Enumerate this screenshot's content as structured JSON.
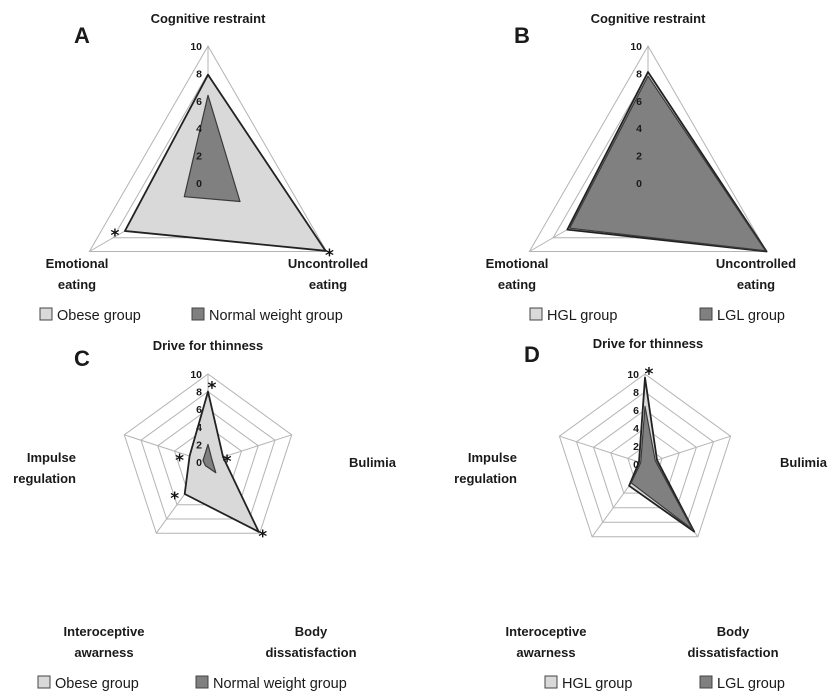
{
  "colors": {
    "light_series": "#d9d9d9",
    "dark_series": "#808080",
    "outline": "#222222",
    "grid": "#b4b4b4"
  },
  "chart_data": [
    {
      "panel": "A",
      "type": "radar",
      "axes": [
        "Cognitive restraint",
        "Uncontrolled eating",
        "Emotional eating"
      ],
      "axis_label_lines": [
        [
          "Cognitive restraint"
        ],
        [
          "Uncontrolled",
          "eating"
        ],
        [
          "Emotional",
          "eating"
        ]
      ],
      "ticks": [
        "0",
        "2",
        "4",
        "6",
        "8",
        "10"
      ],
      "range": [
        0,
        10
      ],
      "grid": true,
      "series": [
        {
          "name": "Obese group",
          "values": [
            7.9,
            9.9,
            7.0
          ],
          "style": "light"
        },
        {
          "name": "Normal weight group",
          "values": [
            6.4,
            2.7,
            2.0
          ],
          "style": "dark"
        }
      ],
      "significant": [
        false,
        true,
        true
      ],
      "legend": {
        "placement": "bottom"
      }
    },
    {
      "panel": "B",
      "type": "radar",
      "axes": [
        "Cognitive restraint",
        "Uncontrolled eating",
        "Emotional eating"
      ],
      "axis_label_lines": [
        [
          "Cognitive restraint"
        ],
        [
          "Uncontrolled",
          "eating"
        ],
        [
          "Emotional",
          "eating"
        ]
      ],
      "ticks": [
        "0",
        "2",
        "4",
        "6",
        "8",
        "10"
      ],
      "range": [
        0,
        10
      ],
      "grid": true,
      "series": [
        {
          "name": "HGL group",
          "values": [
            8.1,
            10.0,
            6.8
          ],
          "style": "light"
        },
        {
          "name": "LGL group",
          "values": [
            7.8,
            9.9,
            6.6
          ],
          "style": "dark"
        }
      ],
      "significant": [
        false,
        false,
        false
      ],
      "legend": {
        "placement": "bottom"
      }
    },
    {
      "panel": "C",
      "type": "radar",
      "axes": [
        "Drive for thinness",
        "Bulimia",
        "Body dissatisfaction",
        "Interoceptive awarness",
        "Impulse regulation"
      ],
      "axis_label_lines": [
        [
          "Drive for thinness"
        ],
        [
          "Bulimia"
        ],
        [
          "Body",
          "dissatisfaction"
        ],
        [
          "Interoceptive",
          "awarness"
        ],
        [
          "Impulse",
          "regulation"
        ]
      ],
      "ticks": [
        "0",
        "2",
        "4",
        "6",
        "8",
        "10"
      ],
      "range": [
        0,
        10
      ],
      "grid": true,
      "series": [
        {
          "name": "Obese group",
          "values": [
            8.0,
            1.8,
            9.8,
            4.5,
            2.2
          ],
          "style": "light"
        },
        {
          "name": "Normal weight group",
          "values": [
            2.0,
            0.5,
            1.5,
            0.5,
            0.6
          ],
          "style": "dark"
        }
      ],
      "significant": [
        true,
        true,
        true,
        true,
        true
      ],
      "legend": {
        "placement": "bottom"
      }
    },
    {
      "panel": "D",
      "type": "radar",
      "axes": [
        "Drive for thinness",
        "Bulimia",
        "Body dissatisfaction",
        "Interoceptive awarness",
        "Impulse regulation"
      ],
      "axis_label_lines": [
        [
          "Drive for thinness"
        ],
        [
          "Bulimia"
        ],
        [
          "Body",
          "dissatisfaction"
        ],
        [
          "Interoceptive",
          "awarness"
        ],
        [
          "Impulse",
          "regulation"
        ]
      ],
      "ticks": [
        "0",
        "2",
        "4",
        "6",
        "8",
        "10"
      ],
      "range": [
        0,
        10
      ],
      "grid": true,
      "series": [
        {
          "name": "HGL group",
          "values": [
            9.6,
            1.4,
            9.3,
            3.0,
            0.7
          ],
          "style": "light"
        },
        {
          "name": "LGL group",
          "values": [
            6.4,
            1.2,
            9.0,
            2.6,
            0.5
          ],
          "style": "dark"
        }
      ],
      "significant": [
        true,
        false,
        false,
        false,
        false
      ],
      "legend": {
        "placement": "bottom"
      }
    }
  ]
}
